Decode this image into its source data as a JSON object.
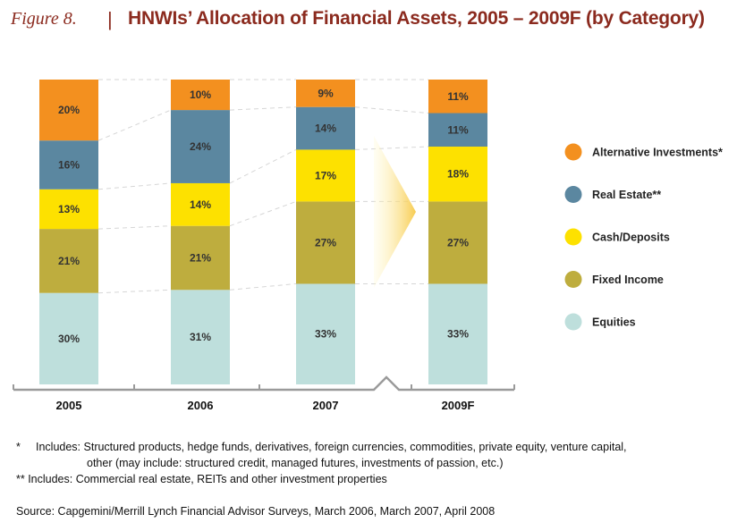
{
  "figure_label": "Figure 8.",
  "separator": "|",
  "chart_data": {
    "type": "bar",
    "stacked": true,
    "title": "HNWIs’ Allocation of Financial Assets, 2005 – 2009F (by Category)",
    "categories": [
      "2005",
      "2006",
      "2007",
      "2009F"
    ],
    "ylim": [
      0,
      100
    ],
    "axis_break_between": [
      "2007",
      "2009F"
    ],
    "series": [
      {
        "name": "Equities",
        "color": "#bedfdc",
        "values": [
          30,
          31,
          33,
          33
        ]
      },
      {
        "name": "Fixed Income",
        "color": "#bead3e",
        "values": [
          21,
          21,
          27,
          27
        ]
      },
      {
        "name": "Cash/Deposits",
        "color": "#fde100",
        "values": [
          13,
          14,
          17,
          18
        ]
      },
      {
        "name": "Real Estate**",
        "color": "#5b87a0",
        "values": [
          16,
          24,
          14,
          11
        ]
      },
      {
        "name": "Alternative Investments*",
        "color": "#f3901f",
        "values": [
          20,
          10,
          9,
          11
        ]
      }
    ],
    "legend_order": [
      "Alternative Investments*",
      "Real Estate**",
      "Cash/Deposits",
      "Fixed Income",
      "Equities"
    ],
    "legend_position": "right",
    "value_suffix": "%",
    "grid": false
  },
  "notes": {
    "note1_mark": "*",
    "note1_line1": "Includes: Structured products, hedge funds, derivatives, foreign currencies, commodities, private equity, venture capital,",
    "note1_line2": "other (may include: structured credit, managed futures, investments of passion, etc.)",
    "note2": "** Includes: Commercial real estate, REITs and other investment properties"
  },
  "source": "Source: Capgemini/Merrill Lynch Financial Advisor Surveys, March 2006, March 2007, April 2008"
}
